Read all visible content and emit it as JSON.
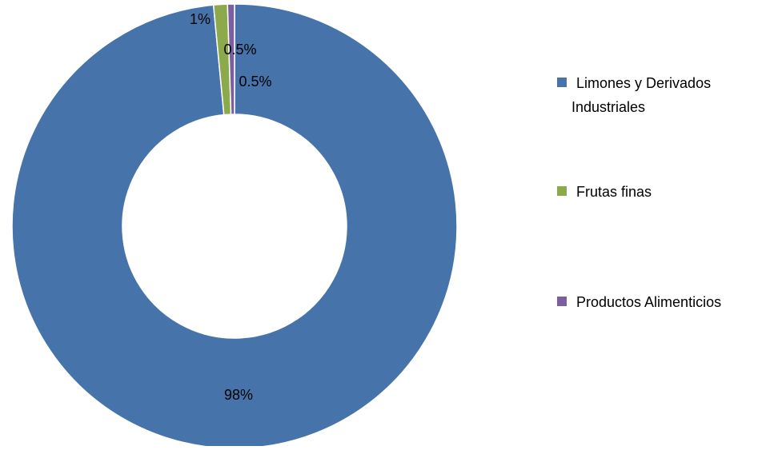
{
  "chart_data": {
    "type": "pie",
    "donut": true,
    "legend_position": "right",
    "slices": [
      {
        "name": "Limones y Derivados Industriales",
        "legend_lines": [
          "Limones y Derivados",
          "Industriales"
        ],
        "value": 98,
        "label": "98%",
        "color": "#4673A9"
      },
      {
        "name": "Frutas finas",
        "legend_lines": [
          "Frutas finas"
        ],
        "value": 1,
        "label": "1%",
        "color": "#8CAA4C"
      },
      {
        "name": "Productos Alimenticios",
        "legend_lines": [
          "Productos Alimenticios"
        ],
        "value": 0.5,
        "label": "0.5%",
        "color": "#7B5F9E"
      }
    ],
    "extra_labels": [
      "0.5%"
    ]
  }
}
